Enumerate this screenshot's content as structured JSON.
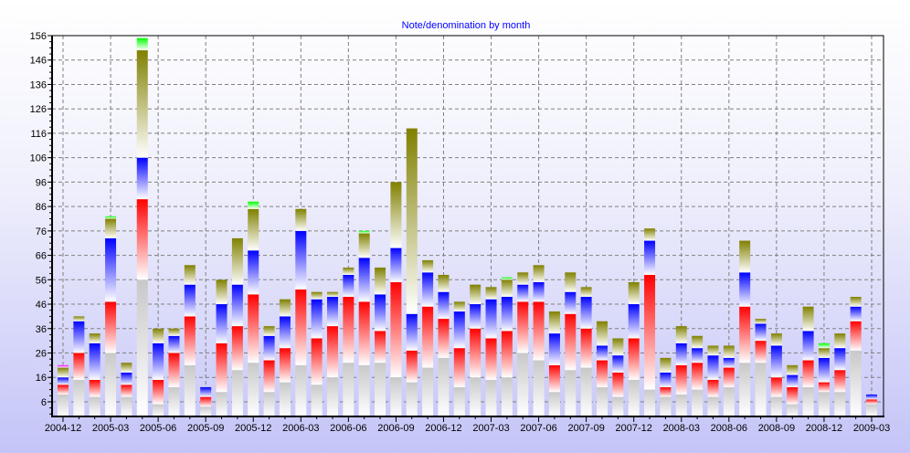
{
  "chart_data": {
    "type": "bar",
    "stacked": true,
    "title": "Note/denomination by month",
    "xlabel": "",
    "ylabel": "",
    "ylim": [
      0,
      156
    ],
    "y_ticks": [
      6,
      16,
      26,
      36,
      46,
      56,
      66,
      76,
      86,
      96,
      106,
      116,
      126,
      136,
      146,
      156
    ],
    "x_tick_every": 3,
    "grid": true,
    "legend": "none",
    "categories": [
      "2004-12",
      "2005-01",
      "2005-02",
      "2005-03",
      "2005-04",
      "2005-05",
      "2005-06",
      "2005-07",
      "2005-08",
      "2005-09",
      "2005-10",
      "2005-11",
      "2005-12",
      "2006-01",
      "2006-02",
      "2006-03",
      "2006-04",
      "2006-05",
      "2006-06",
      "2006-07",
      "2006-08",
      "2006-09",
      "2006-10",
      "2006-11",
      "2006-12",
      "2007-01",
      "2007-02",
      "2007-03",
      "2007-04",
      "2007-05",
      "2007-06",
      "2007-07",
      "2007-08",
      "2007-09",
      "2007-10",
      "2007-11",
      "2007-12",
      "2008-01",
      "2008-02",
      "2008-03",
      "2008-04",
      "2008-05",
      "2008-06",
      "2008-07",
      "2008-08",
      "2008-09",
      "2008-10",
      "2008-11",
      "2008-12",
      "2009-01",
      "2009-02",
      "2009-03"
    ],
    "series": [
      {
        "color": "#c8c8c8",
        "values": [
          9,
          15,
          8,
          26,
          8,
          56,
          5,
          12,
          21,
          4,
          10,
          19,
          22,
          10,
          14,
          21,
          13,
          16,
          22,
          21,
          22,
          16,
          14,
          20,
          24,
          12,
          16,
          15,
          16,
          26,
          23,
          10,
          19,
          20,
          12,
          8,
          15,
          11,
          8,
          9,
          11,
          8,
          12,
          22,
          22,
          8,
          5,
          12,
          10,
          10,
          27,
          5
        ]
      },
      {
        "color": "#ff0000",
        "values": [
          4,
          11,
          7,
          21,
          5,
          33,
          10,
          14,
          20,
          4,
          20,
          18,
          28,
          13,
          14,
          31,
          19,
          21,
          27,
          26,
          13,
          39,
          13,
          25,
          16,
          16,
          20,
          17,
          19,
          21,
          24,
          11,
          23,
          16,
          11,
          10,
          17,
          47,
          4,
          12,
          11,
          7,
          8,
          23,
          9,
          8,
          7,
          11,
          4,
          9,
          12,
          2
        ]
      },
      {
        "color": "#0000ff",
        "values": [
          3,
          13,
          15,
          26,
          5,
          17,
          15,
          7,
          13,
          4,
          16,
          17,
          18,
          10,
          13,
          24,
          16,
          12,
          9,
          18,
          15,
          14,
          15,
          14,
          11,
          15,
          10,
          16,
          14,
          7,
          8,
          13,
          9,
          13,
          6,
          7,
          14,
          14,
          6,
          9,
          6,
          10,
          4,
          14,
          7,
          13,
          5,
          12,
          10,
          9,
          6,
          2
        ]
      },
      {
        "color": "#808000",
        "values": [
          4,
          2,
          4,
          8,
          4,
          44,
          6,
          3,
          8,
          0,
          10,
          19,
          17,
          4,
          7,
          9,
          3,
          2,
          3,
          10,
          11,
          27,
          76,
          5,
          7,
          4,
          8,
          5,
          7,
          5,
          7,
          9,
          8,
          4,
          10,
          7,
          9,
          5,
          6,
          7,
          5,
          4,
          5,
          13,
          2,
          5,
          4,
          10,
          4,
          6,
          4,
          0
        ]
      },
      {
        "color": "#00ff00",
        "values": [
          0,
          0,
          0,
          1,
          0,
          5,
          0,
          0,
          0,
          0,
          0,
          0,
          3,
          0,
          0,
          0,
          0,
          0,
          0,
          1,
          0,
          0,
          0,
          0,
          0,
          0,
          0,
          0,
          1,
          0,
          0,
          0,
          0,
          0,
          0,
          0,
          0,
          0,
          0,
          0,
          0,
          0,
          0,
          0,
          0,
          0,
          0,
          0,
          2,
          0,
          0,
          0
        ]
      },
      {
        "color": "#ff00ff",
        "values": [
          1,
          0,
          0,
          0,
          0,
          0,
          0,
          0,
          0,
          0,
          0,
          0,
          0,
          0,
          0,
          0,
          0,
          0,
          0,
          0,
          0,
          0,
          0,
          0,
          0,
          0,
          0,
          0,
          0,
          0,
          0,
          0,
          0,
          0,
          0,
          0,
          0,
          0,
          0,
          0,
          0,
          0,
          0,
          0,
          0,
          0,
          0,
          0,
          0,
          0,
          0,
          0
        ]
      }
    ]
  }
}
